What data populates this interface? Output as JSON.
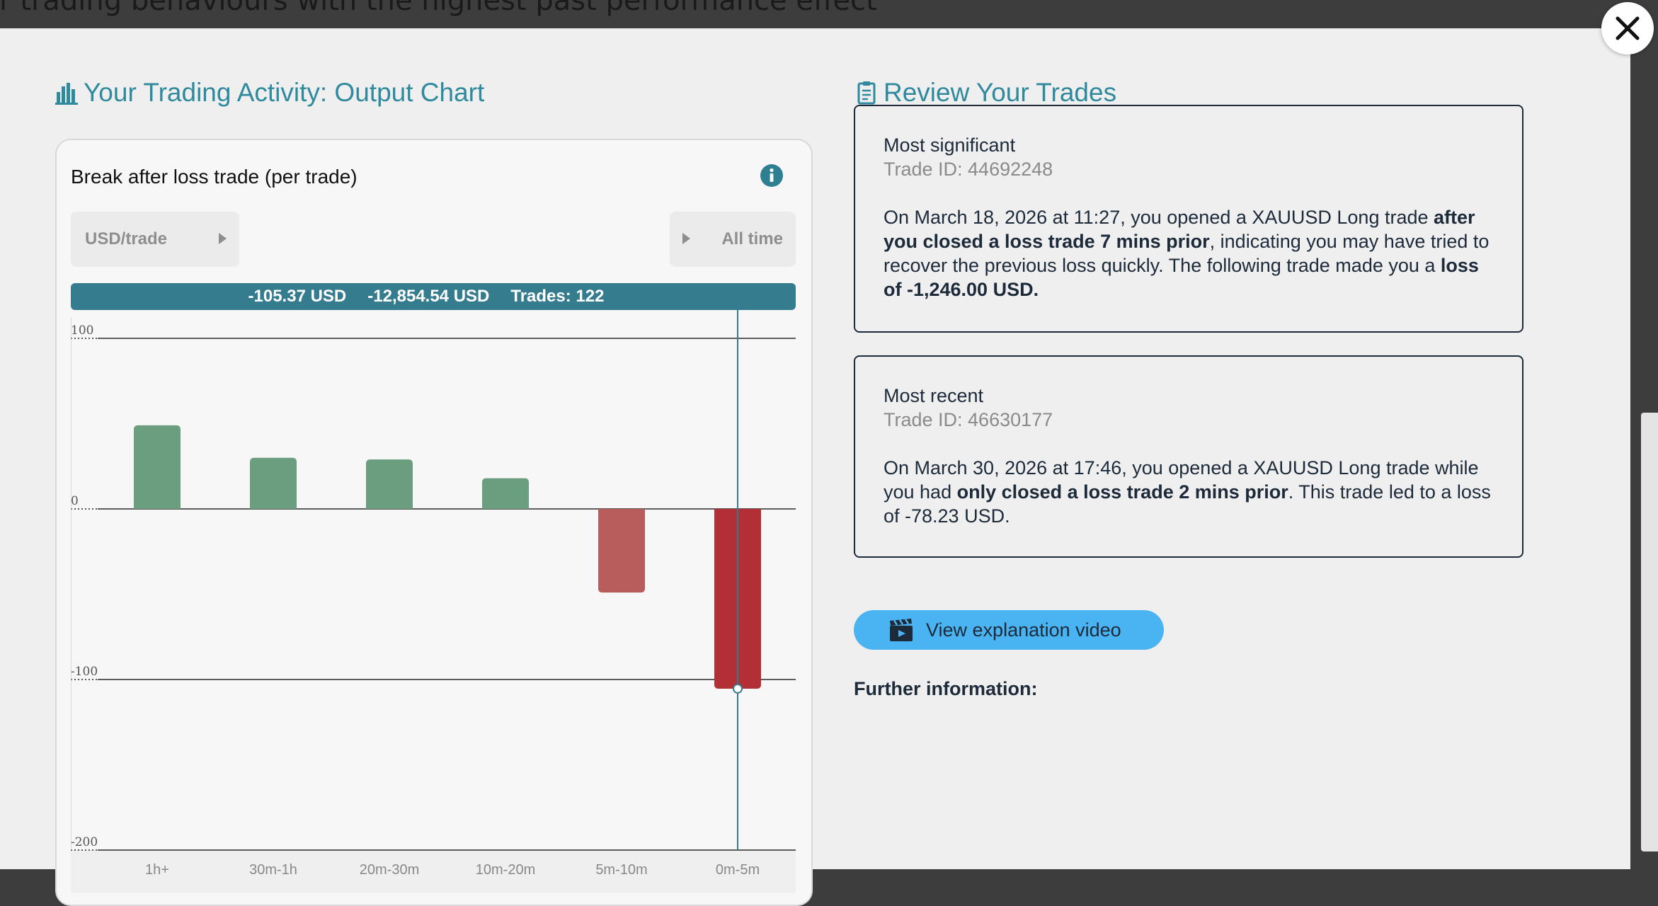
{
  "background_text": "ır trading behaviours with the highest past performance effect",
  "left_section": {
    "title": "Your Trading Activity: Output Chart",
    "icon": "bar-chart-icon"
  },
  "right_section": {
    "title": "Review Your Trades",
    "icon": "clipboard-icon"
  },
  "chart_card": {
    "title": "Break after loss trade (per trade)",
    "unit_selector": "USD/trade",
    "period_selector": "All time",
    "summary": {
      "per_trade": "-105.37 USD",
      "total": "-12,854.54 USD",
      "trades": "Trades: 122"
    }
  },
  "chart_data": {
    "type": "bar",
    "categories": [
      "1h+",
      "30m-1h",
      "20m-30m",
      "10m-20m",
      "5m-10m",
      "0m-5m"
    ],
    "values": [
      49,
      30,
      29,
      18,
      -49,
      -105.37
    ],
    "ylim": [
      -200,
      100
    ],
    "yticks": [
      100,
      0,
      -100,
      -200
    ],
    "grid": true,
    "highlighted_category": "0m-5m",
    "colors": {
      "positive": "#6a9e7e",
      "negative": "#b95c5c",
      "highlight": "#b22f35",
      "crosshair": "#357d8e"
    }
  },
  "most_significant": {
    "label": "Most significant",
    "trade_id": "Trade ID: 44692248",
    "text_1": "On March 18, 2026 at 11:27, you opened a XAUUSD Long trade ",
    "bold_1": "after you closed a loss trade 7 mins prior",
    "text_2": ", indicating you may have tried to recover the previous loss quickly. The following trade made you a ",
    "bold_2": "loss of -1,246.00 USD."
  },
  "most_recent": {
    "label": "Most recent",
    "trade_id": "Trade ID: 46630177",
    "text_1": "On March 30, 2026 at 17:46, you opened a XAUUSD Long trade while you had ",
    "bold_1": "only closed a loss trade 2 mins prior",
    "text_2": ". This trade led to a loss of -78.23 USD."
  },
  "video_button": {
    "label": "View explanation video",
    "icon": "clapperboard-icon"
  },
  "further_info": "Further information:",
  "close_icon": "close-icon"
}
